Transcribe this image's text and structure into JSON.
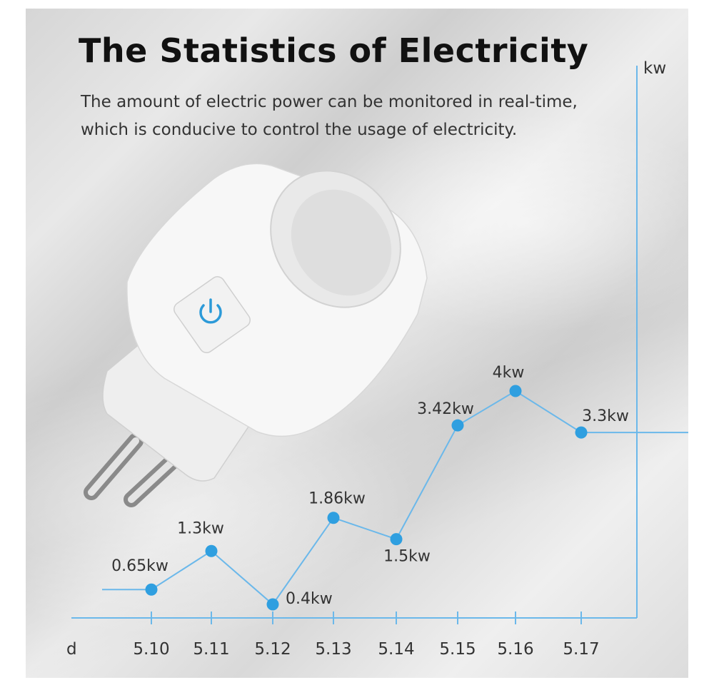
{
  "header": {
    "title": "The Statistics of Electricity",
    "subtitle_line1": "The amount of electric power can be monitored in real-time,",
    "subtitle_line2": "which is conducive to control the usage of electricity."
  },
  "colors": {
    "accent": "#2f9fe0",
    "axis": "#6bb8ea",
    "text": "#333333",
    "title": "#111111"
  },
  "chart_data": {
    "type": "line",
    "xlabel": "d",
    "ylabel": "kw",
    "categories": [
      "5.10",
      "5.11",
      "5.12",
      "5.13",
      "5.14",
      "5.15",
      "5.16",
      "5.17"
    ],
    "values": [
      0.65,
      1.3,
      0.4,
      1.86,
      1.5,
      3.42,
      4,
      3.3
    ],
    "data_labels": [
      "0.65kw",
      "1.3kw",
      "0.4kw",
      "1.86kw",
      "1.5kw",
      "3.42kw",
      "4kw",
      "3.3kw"
    ],
    "ylim": [
      0,
      4.6
    ],
    "grid": false,
    "legend": "none"
  }
}
